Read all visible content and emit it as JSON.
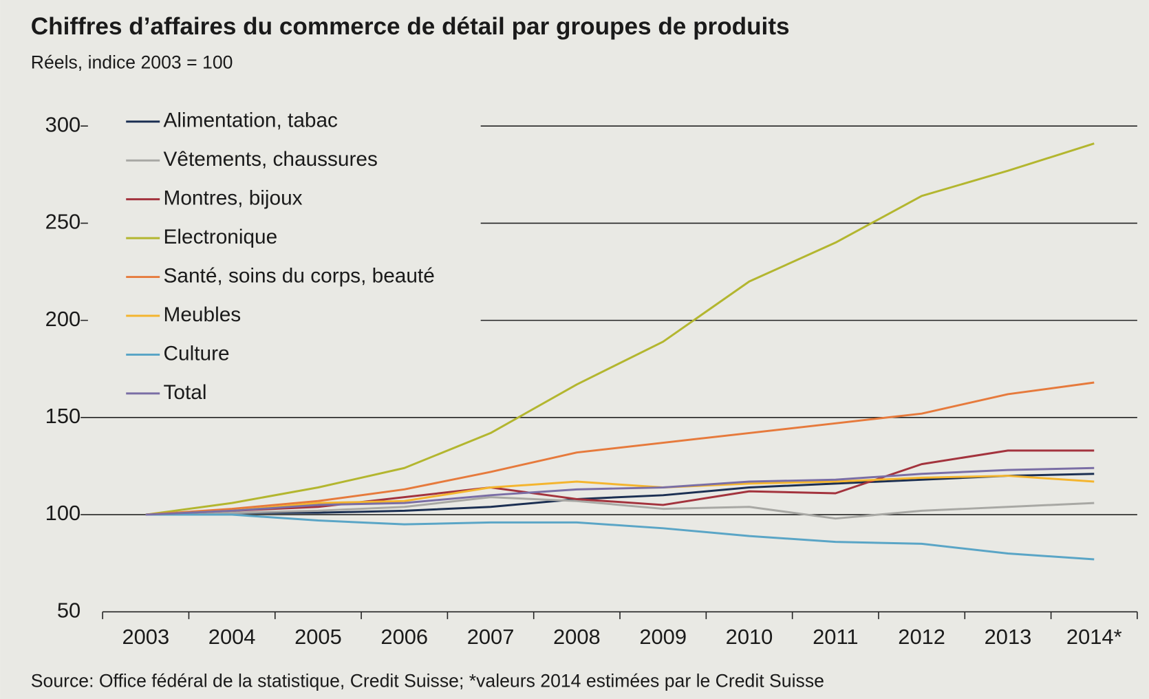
{
  "chart_data": {
    "type": "line",
    "title": "Chiffres d’affaires du commerce de détail par groupes de produits",
    "subtitle": "Réels, indice 2003 = 100",
    "source": "Source: Office fédéral de la statistique, Credit Suisse; *valeurs 2014 estimées par le Credit Suisse",
    "categories": [
      "2003",
      "2004",
      "2005",
      "2006",
      "2007",
      "2008",
      "2009",
      "2010",
      "2011",
      "2012",
      "2013",
      "2014*"
    ],
    "ylim": [
      50,
      300
    ],
    "yticks": [
      50,
      100,
      150,
      200,
      250,
      300
    ],
    "grid": true,
    "legend": "top-left",
    "series": [
      {
        "name": "Alimentation, tabac",
        "color": "#1b2f52",
        "values": [
          100,
          101,
          101,
          102,
          104,
          108,
          110,
          114,
          116,
          118,
          120,
          121
        ]
      },
      {
        "name": "Vêtements, chaussures",
        "color": "#a8a8a4",
        "values": [
          100,
          101,
          102,
          104,
          109,
          107,
          103,
          104,
          98,
          102,
          104,
          106
        ]
      },
      {
        "name": "Montres, bijoux",
        "color": "#a3333d",
        "values": [
          100,
          102,
          104,
          109,
          114,
          108,
          105,
          112,
          111,
          126,
          133,
          133
        ]
      },
      {
        "name": "Electronique",
        "color": "#b3b62f",
        "values": [
          100,
          106,
          114,
          124,
          142,
          167,
          189,
          220,
          240,
          264,
          277,
          291
        ]
      },
      {
        "name": "Santé, soins du corps, beauté",
        "color": "#e67a3c",
        "values": [
          100,
          103,
          107,
          113,
          122,
          132,
          137,
          142,
          147,
          152,
          162,
          168
        ]
      },
      {
        "name": "Meubles",
        "color": "#f4b52f",
        "values": [
          100,
          102,
          106,
          107,
          114,
          117,
          114,
          116,
          117,
          119,
          120,
          117
        ]
      },
      {
        "name": "Culture",
        "color": "#5aa5c6",
        "values": [
          100,
          100,
          97,
          95,
          96,
          96,
          93,
          89,
          86,
          85,
          80,
          77
        ]
      },
      {
        "name": "Total",
        "color": "#7a6ea5",
        "values": [
          100,
          102,
          105,
          106,
          110,
          113,
          114,
          117,
          118,
          121,
          123,
          124
        ]
      }
    ]
  }
}
